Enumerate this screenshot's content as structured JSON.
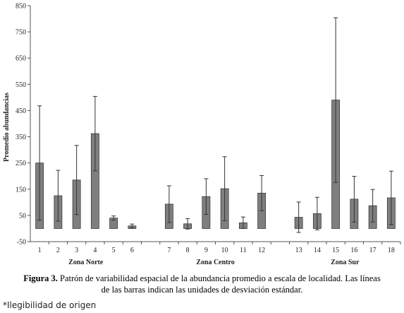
{
  "chart_data": {
    "type": "bar",
    "ylabel": "Promedio abundancias",
    "ylim": [
      -50,
      850
    ],
    "yticks": [
      -50,
      50,
      150,
      250,
      350,
      450,
      550,
      650,
      750,
      850
    ],
    "grid": false,
    "groups": [
      {
        "name": "Zona Norte",
        "categories": [
          "1",
          "2",
          "3",
          "4",
          "5",
          "6"
        ],
        "values": [
          250,
          125,
          185,
          362,
          40,
          10
        ],
        "errors": [
          218,
          97,
          132,
          142,
          8,
          7
        ]
      },
      {
        "name": "Zona Centro",
        "categories": [
          "7",
          "8",
          "9",
          "10",
          "11",
          "12"
        ],
        "values": [
          93,
          18,
          122,
          152,
          22,
          135
        ],
        "errors": [
          70,
          20,
          68,
          122,
          22,
          67
        ]
      },
      {
        "name": "Zona  Sur",
        "categories": [
          "13",
          "14",
          "15",
          "16",
          "17",
          "18"
        ],
        "values": [
          43,
          57,
          490,
          112,
          87,
          117
        ],
        "errors": [
          58,
          62,
          314,
          87,
          62,
          102
        ]
      }
    ],
    "colors": {
      "bar": "#7f7f7f",
      "bar_stroke": "#3a3a3a",
      "error": "#333333",
      "axis": "#555555"
    }
  },
  "caption": {
    "label": "Figura 3.",
    "text": " Patrón de variabilidad espacial de la abundancia promedio a escala de localidad. Las líneas",
    "text2": "de las barras indican las unidades de desviación estándar."
  },
  "note": "*Ilegibilidad de origen"
}
